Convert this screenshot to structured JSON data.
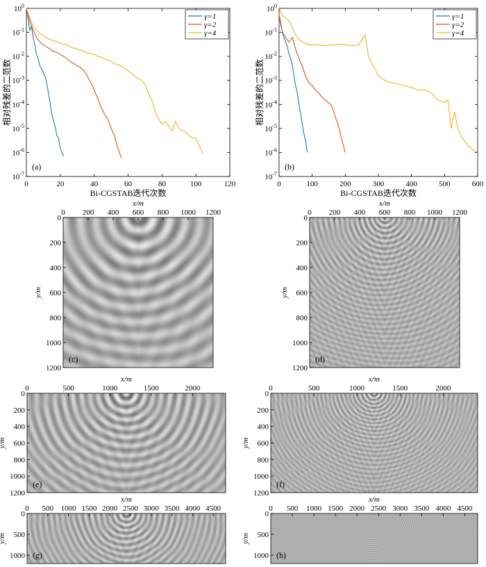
{
  "chart_data": [
    {
      "type": "line",
      "panel_label": "(a)",
      "xlabel": "Bi-CGSTAB迭代次数",
      "ylabel": "相对残差的二范数",
      "xlim": [
        0,
        120
      ],
      "ylim": [
        1e-07,
        1
      ],
      "yscale": "log",
      "x_ticks": [
        "0",
        "20",
        "40",
        "60",
        "80",
        "100",
        "120"
      ],
      "y_ticks": [
        {
          "base": "10",
          "exp": "-7"
        },
        {
          "base": "10",
          "exp": "-6"
        },
        {
          "base": "10",
          "exp": "-5"
        },
        {
          "base": "10",
          "exp": "-4"
        },
        {
          "base": "10",
          "exp": "-3"
        },
        {
          "base": "10",
          "exp": "-2"
        },
        {
          "base": "10",
          "exp": "-1"
        },
        {
          "base": "10",
          "exp": "0"
        }
      ],
      "legend_position": "top-right",
      "series": [
        {
          "name": "γ=1",
          "color": "#1f77b4",
          "x": [
            0,
            1,
            2,
            3,
            4,
            5,
            6,
            7,
            8,
            9,
            10,
            11,
            12,
            13,
            14,
            15,
            16,
            17,
            18,
            19,
            20,
            21,
            22
          ],
          "y": [
            1.0,
            0.4,
            0.12,
            0.18,
            0.06,
            0.03,
            0.012,
            0.008,
            0.004,
            0.003,
            0.002,
            0.0015,
            0.0008,
            0.0003,
            0.00012,
            4e-05,
            2e-05,
            1.2e-05,
            5e-06,
            4e-06,
            1.5e-06,
            1e-06,
            7e-07
          ]
        },
        {
          "name": "γ=2",
          "color": "#d95319",
          "x": [
            0,
            2,
            4,
            6,
            8,
            10,
            12,
            14,
            16,
            18,
            20,
            22,
            24,
            26,
            28,
            30,
            32,
            34,
            36,
            38,
            40,
            42,
            44,
            46,
            48,
            50,
            52,
            54,
            56
          ],
          "y": [
            1.0,
            0.3,
            0.12,
            0.06,
            0.04,
            0.03,
            0.025,
            0.02,
            0.016,
            0.015,
            0.012,
            0.01,
            0.008,
            0.006,
            0.005,
            0.004,
            0.0035,
            0.0025,
            0.0015,
            0.0008,
            0.0004,
            0.00018,
            8e-05,
            4e-05,
            2.5e-05,
            1e-05,
            5e-06,
            1.5e-06,
            6e-07
          ]
        },
        {
          "name": "γ=4",
          "color": "#edb120",
          "x": [
            0,
            2,
            4,
            6,
            8,
            10,
            12,
            14,
            16,
            18,
            20,
            22,
            24,
            26,
            28,
            30,
            32,
            34,
            36,
            38,
            40,
            42,
            44,
            46,
            48,
            50,
            52,
            54,
            56,
            58,
            60,
            62,
            64,
            66,
            68,
            70,
            72,
            74,
            76,
            78,
            80,
            82,
            84,
            86,
            88,
            90,
            92,
            94,
            96,
            98,
            100,
            102,
            104
          ],
          "y": [
            1.0,
            0.4,
            0.18,
            0.12,
            0.09,
            0.07,
            0.06,
            0.05,
            0.045,
            0.04,
            0.035,
            0.032,
            0.03,
            0.025,
            0.022,
            0.02,
            0.018,
            0.016,
            0.014,
            0.013,
            0.012,
            0.01,
            0.009,
            0.008,
            0.007,
            0.006,
            0.005,
            0.0045,
            0.004,
            0.0032,
            0.0025,
            0.002,
            0.0015,
            0.0012,
            0.001,
            0.0007,
            0.0003,
            0.00015,
            5e-05,
            2.5e-05,
            1.5e-05,
            2e-05,
            1.2e-05,
            8e-06,
            2e-05,
            1e-05,
            8e-06,
            7e-06,
            5e-06,
            4e-06,
            4e-06,
            2e-06,
            9e-07
          ]
        }
      ]
    },
    {
      "type": "line",
      "panel_label": "(b)",
      "xlabel": "Bi-CGSTAB迭代次数",
      "ylabel": "相对残差的二范数",
      "xlim": [
        0,
        600
      ],
      "ylim": [
        1e-07,
        1
      ],
      "yscale": "log",
      "x_ticks": [
        "0",
        "100",
        "200",
        "300",
        "400",
        "500",
        "600"
      ],
      "y_ticks": [
        {
          "base": "10",
          "exp": "-7"
        },
        {
          "base": "10",
          "exp": "-6"
        },
        {
          "base": "10",
          "exp": "-5"
        },
        {
          "base": "10",
          "exp": "-4"
        },
        {
          "base": "10",
          "exp": "-3"
        },
        {
          "base": "10",
          "exp": "-2"
        },
        {
          "base": "10",
          "exp": "-1"
        },
        {
          "base": "10",
          "exp": "0"
        }
      ],
      "legend_position": "top-right",
      "series": [
        {
          "name": "γ=1",
          "color": "#1f77b4",
          "x": [
            0,
            5,
            10,
            15,
            20,
            25,
            30,
            35,
            40,
            45,
            50,
            55,
            60,
            65,
            70,
            75,
            80,
            85
          ],
          "y": [
            0.5,
            0.2,
            0.1,
            0.06,
            0.04,
            0.025,
            0.012,
            0.008,
            0.004,
            0.0015,
            0.0006,
            0.0003,
            0.0001,
            4e-05,
            1.5e-05,
            6e-06,
            3e-06,
            1e-06
          ]
        },
        {
          "name": "γ=2",
          "color": "#d95319",
          "x": [
            0,
            10,
            20,
            30,
            40,
            50,
            60,
            70,
            80,
            90,
            100,
            110,
            120,
            130,
            140,
            150,
            160,
            170,
            180,
            190,
            200
          ],
          "y": [
            0.6,
            0.1,
            0.06,
            0.04,
            0.06,
            0.02,
            0.008,
            0.004,
            0.0015,
            0.0008,
            0.0006,
            0.0004,
            0.0003,
            0.0002,
            0.00015,
            0.00012,
            8e-05,
            3e-05,
            1.2e-05,
            3e-06,
            1e-06
          ]
        },
        {
          "name": "γ=4",
          "color": "#edb120",
          "x": [
            0,
            10,
            20,
            30,
            40,
            50,
            60,
            70,
            80,
            90,
            100,
            120,
            140,
            160,
            180,
            200,
            220,
            240,
            260,
            270,
            280,
            290,
            300,
            320,
            340,
            360,
            380,
            400,
            420,
            440,
            460,
            480,
            500,
            510,
            520,
            530,
            540,
            550,
            560,
            570,
            580,
            590,
            600
          ],
          "y": [
            1.0,
            0.5,
            0.4,
            0.3,
            0.15,
            0.08,
            0.05,
            0.04,
            0.035,
            0.03,
            0.03,
            0.03,
            0.028,
            0.03,
            0.032,
            0.03,
            0.028,
            0.03,
            0.08,
            0.01,
            0.005,
            0.003,
            0.0015,
            0.001,
            0.0008,
            0.0007,
            0.0006,
            0.0005,
            0.0004,
            0.0004,
            0.0003,
            0.00015,
            0.00012,
            0.00015,
            1e-05,
            5e-05,
            1e-05,
            5e-06,
            3e-06,
            2e-06,
            1.5e-06,
            1.2e-06,
            1e-06
          ]
        }
      ]
    },
    {
      "type": "heatmap",
      "panel_label": "(c)",
      "xlabel": "x/m",
      "ylabel": "y/m",
      "x_ticks": [
        "0",
        "200",
        "400",
        "600",
        "800",
        "1000",
        "1200"
      ],
      "y_ticks": [
        "0",
        "200",
        "400",
        "600",
        "800",
        "1000",
        "1200"
      ],
      "xlim": [
        0,
        1200
      ],
      "ylim": [
        0,
        1200
      ],
      "source_x": 600,
      "wavelength": 120
    },
    {
      "type": "heatmap",
      "panel_label": "(d)",
      "xlabel": "x/m",
      "ylabel": "y/m",
      "x_ticks": [
        "0",
        "200",
        "400",
        "600",
        "800",
        "1000",
        "1200"
      ],
      "y_ticks": [
        "0",
        "200",
        "400",
        "600",
        "800",
        "1000",
        "1200"
      ],
      "xlim": [
        0,
        1200
      ],
      "ylim": [
        0,
        1200
      ],
      "source_x": 600,
      "wavelength": 40
    },
    {
      "type": "heatmap",
      "panel_label": "(e)",
      "xlabel": "x/m",
      "ylabel": "y/m",
      "x_ticks": [
        "0",
        "500",
        "1000",
        "1500",
        "2000"
      ],
      "y_ticks": [
        "0",
        "200",
        "400",
        "600",
        "800",
        "1000",
        "1200"
      ],
      "xlim": [
        0,
        2400
      ],
      "ylim": [
        0,
        1200
      ],
      "source_x": 1200,
      "wavelength": 110
    },
    {
      "type": "heatmap",
      "panel_label": "(f)",
      "xlabel": "x/m",
      "ylabel": "y/m",
      "x_ticks": [
        "0",
        "500",
        "1000",
        "1500",
        "2000"
      ],
      "y_ticks": [
        "0",
        "200",
        "400",
        "600",
        "800",
        "1000",
        "1200"
      ],
      "xlim": [
        0,
        2400
      ],
      "ylim": [
        0,
        1200
      ],
      "source_x": 1200,
      "wavelength": 50
    },
    {
      "type": "heatmap",
      "panel_label": "(g)",
      "xlabel": "x/m",
      "ylabel": "y/m",
      "x_ticks": [
        "0",
        "500",
        "1000",
        "1500",
        "2000",
        "2500",
        "3000",
        "3500",
        "4000",
        "4500"
      ],
      "y_ticks": [
        "0",
        "500",
        "1000"
      ],
      "xlim": [
        0,
        4800
      ],
      "ylim": [
        0,
        1200
      ],
      "source_x": 2400,
      "wavelength": 140
    },
    {
      "type": "heatmap",
      "panel_label": "(h)",
      "xlabel": "x/m",
      "ylabel": "y/m",
      "x_ticks": [
        "0",
        "500",
        "1000",
        "1500",
        "2000",
        "2500",
        "3000",
        "3500",
        "4000",
        "4500"
      ],
      "y_ticks": [
        "0",
        "500",
        "1000"
      ],
      "xlim": [
        0,
        4800
      ],
      "ylim": [
        0,
        1200
      ],
      "source_x": 2400,
      "wavelength": 45
    }
  ]
}
